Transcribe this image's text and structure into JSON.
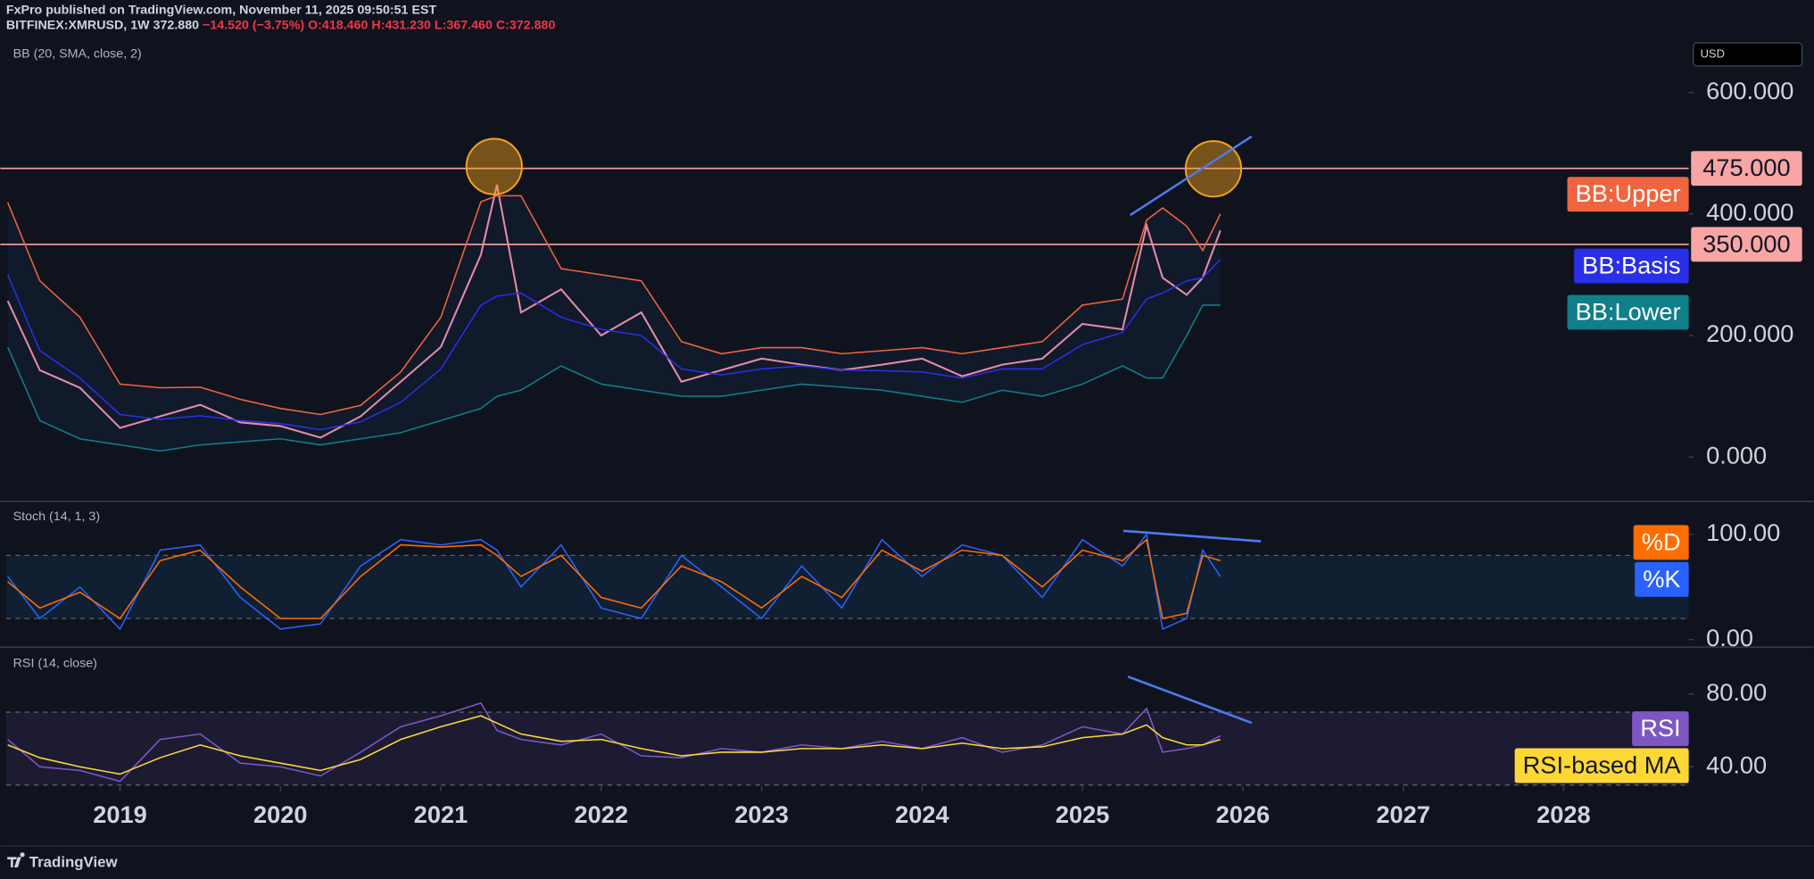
{
  "header": {
    "published": "FxPro published on TradingView.com, November 11, 2025 09:50:51 EST",
    "symbol": "BITFINEX:XMRUSD, 1W",
    "last": "372.880",
    "change": "−14.520 (−3.75%)",
    "open": "O:418.460",
    "high": "H:431.230",
    "low": "L:367.460",
    "close": "C:372.880"
  },
  "currency": "USD",
  "footer": "TradingView",
  "chart_data": [
    {
      "type": "line",
      "indicator": "BB (20, SMA, close, 2)",
      "x": [
        2018.3,
        2018.5,
        2018.75,
        2019.0,
        2019.25,
        2019.5,
        2019.75,
        2020.0,
        2020.25,
        2020.5,
        2020.75,
        2021.0,
        2021.25,
        2021.35,
        2021.5,
        2021.75,
        2022.0,
        2022.25,
        2022.5,
        2022.75,
        2023.0,
        2023.25,
        2023.5,
        2023.75,
        2024.0,
        2024.25,
        2024.5,
        2024.75,
        2025.0,
        2025.25,
        2025.4,
        2025.5,
        2025.65,
        2025.75,
        2025.86
      ],
      "xlim": [
        2018.29,
        2028.78
      ],
      "xticks": [
        2019,
        2020,
        2021,
        2022,
        2023,
        2024,
        2025,
        2026,
        2027,
        2028
      ],
      "ylim": [
        -72,
        695
      ],
      "yticks": [
        {
          "value": 0,
          "label": "0.000"
        },
        {
          "value": 200,
          "label": "200.000"
        },
        {
          "value": 400,
          "label": "400.000"
        },
        {
          "value": 600,
          "label": "600.000"
        }
      ],
      "levels": [
        {
          "value": 475,
          "label": "475.000"
        },
        {
          "value": 350,
          "label": "350.000"
        }
      ],
      "level_color": "#f8a5a5",
      "series": [
        {
          "color": "#e58aa6",
          "values": [
            257,
            143,
            114,
            48,
            67,
            86,
            57,
            51,
            32,
            67,
            124,
            181,
            333,
            448,
            238,
            276,
            200,
            238,
            124,
            143,
            162,
            152,
            143,
            152,
            162,
            133,
            152,
            162,
            219,
            210,
            381,
            295,
            267,
            295,
            372.88
          ]
        },
        {
          "name": "BB:Upper",
          "color": "#f0643f",
          "values": [
            419,
            290,
            230,
            120,
            114,
            115,
            95,
            80,
            70,
            85,
            140,
            230,
            420,
            430,
            430,
            310,
            300,
            290,
            190,
            170,
            180,
            180,
            170,
            175,
            180,
            170,
            180,
            190,
            250,
            260,
            390,
            410,
            380,
            340,
            400
          ]
        },
        {
          "name": "BB:Basis",
          "color": "#2a2fe8",
          "values": [
            300,
            175,
            130,
            70,
            62,
            68,
            60,
            55,
            45,
            58,
            90,
            145,
            250,
            265,
            270,
            230,
            210,
            200,
            145,
            135,
            145,
            150,
            143,
            142,
            140,
            130,
            145,
            145,
            185,
            205,
            260,
            270,
            290,
            295,
            325
          ]
        },
        {
          "name": "BB:Lower",
          "color": "#0f7f8a",
          "values": [
            181,
            60,
            30,
            20,
            10,
            20,
            25,
            30,
            20,
            30,
            40,
            60,
            80,
            100,
            110,
            150,
            120,
            110,
            100,
            100,
            110,
            120,
            115,
            110,
            100,
            90,
            110,
            100,
            120,
            150,
            130,
            130,
            200,
            250,
            250
          ]
        }
      ]
    },
    {
      "type": "line",
      "indicator": "Stoch (14, 1, 3)",
      "x": [
        2018.3,
        2018.5,
        2018.75,
        2019.0,
        2019.25,
        2019.5,
        2019.75,
        2020.0,
        2020.25,
        2020.5,
        2020.75,
        2021.0,
        2021.25,
        2021.35,
        2021.5,
        2021.75,
        2022.0,
        2022.25,
        2022.5,
        2022.75,
        2023.0,
        2023.25,
        2023.5,
        2023.75,
        2024.0,
        2024.25,
        2024.5,
        2024.75,
        2025.0,
        2025.25,
        2025.4,
        2025.5,
        2025.65,
        2025.75,
        2025.86
      ],
      "xlim": [
        2018.29,
        2028.78
      ],
      "ylim": [
        -6.6,
        130.8
      ],
      "yticks": [
        {
          "value": 0,
          "label": "0.00"
        },
        {
          "value": 100,
          "label": "100.00"
        }
      ],
      "bands": [
        20,
        80
      ],
      "series": [
        {
          "name": "%K",
          "color": "#2962ff",
          "values": [
            60,
            20,
            50,
            10,
            85,
            90,
            40,
            10,
            15,
            70,
            95,
            90,
            95,
            85,
            50,
            90,
            30,
            20,
            80,
            50,
            20,
            70,
            30,
            95,
            60,
            90,
            80,
            40,
            95,
            70,
            100,
            10,
            20,
            85,
            60
          ]
        },
        {
          "name": "%D",
          "color": "#ff6d00",
          "values": [
            55,
            30,
            45,
            20,
            75,
            85,
            50,
            20,
            20,
            60,
            90,
            88,
            90,
            80,
            60,
            80,
            40,
            30,
            70,
            55,
            30,
            60,
            40,
            85,
            65,
            85,
            80,
            50,
            85,
            75,
            95,
            20,
            25,
            80,
            75
          ]
        }
      ]
    },
    {
      "type": "line",
      "indicator": "RSI (14, close)",
      "x": [
        2018.3,
        2018.5,
        2018.75,
        2019.0,
        2019.25,
        2019.5,
        2019.75,
        2020.0,
        2020.25,
        2020.5,
        2020.75,
        2021.0,
        2021.25,
        2021.35,
        2021.5,
        2021.75,
        2022.0,
        2022.25,
        2022.5,
        2022.75,
        2023.0,
        2023.25,
        2023.5,
        2023.75,
        2024.0,
        2024.25,
        2024.5,
        2024.75,
        2025.0,
        2025.25,
        2025.4,
        2025.5,
        2025.65,
        2025.75,
        2025.86
      ],
      "xlim": [
        2018.29,
        2028.78
      ],
      "ylim": [
        29.2,
        105.4
      ],
      "yticks": [
        {
          "value": 40,
          "label": "40.00"
        },
        {
          "value": 80,
          "label": "80.00"
        }
      ],
      "bands": [
        30,
        70
      ],
      "series": [
        {
          "name": "RSI",
          "color": "#7e57c2",
          "values": [
            55,
            40,
            38,
            32,
            55,
            58,
            42,
            40,
            35,
            48,
            62,
            68,
            75,
            60,
            55,
            52,
            58,
            46,
            45,
            50,
            48,
            52,
            50,
            54,
            50,
            56,
            48,
            52,
            62,
            58,
            72,
            48,
            50,
            52,
            57
          ]
        },
        {
          "name": "RSI-based MA",
          "color": "#fdd835",
          "values": [
            52,
            45,
            40,
            36,
            45,
            52,
            46,
            42,
            38,
            44,
            55,
            62,
            68,
            64,
            58,
            54,
            55,
            50,
            46,
            48,
            48,
            50,
            50,
            52,
            50,
            53,
            50,
            51,
            56,
            58,
            63,
            56,
            52,
            52,
            55
          ]
        }
      ]
    }
  ]
}
